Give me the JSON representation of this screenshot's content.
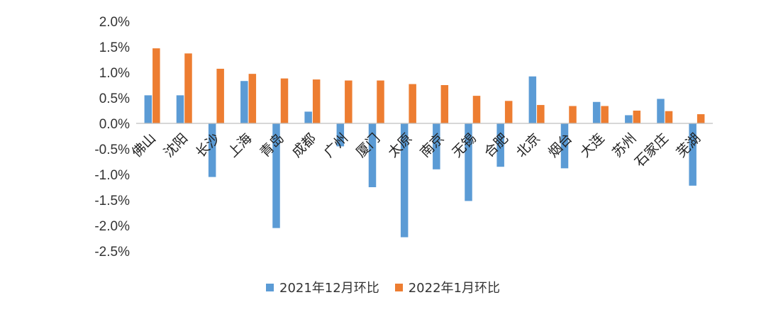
{
  "chart_data": {
    "type": "bar",
    "categories": [
      "佛山",
      "沈阳",
      "长沙",
      "上海",
      "青岛",
      "成都",
      "广州",
      "厦门",
      "太原",
      "南京",
      "无锡",
      "合肥",
      "北京",
      "烟台",
      "大连",
      "苏州",
      "石家庄",
      "芜湖"
    ],
    "series": [
      {
        "name": "2021年12月环比",
        "color": "#5B9BD5",
        "values": [
          0.55,
          0.55,
          -1.05,
          0.83,
          -2.05,
          0.23,
          -0.45,
          -1.25,
          -2.23,
          -0.9,
          -1.52,
          -0.85,
          0.92,
          -0.88,
          0.42,
          0.16,
          0.48,
          -1.22
        ]
      },
      {
        "name": "2022年1月环比",
        "color": "#ED7D31",
        "values": [
          1.47,
          1.37,
          1.07,
          0.97,
          0.88,
          0.86,
          0.84,
          0.84,
          0.77,
          0.75,
          0.54,
          0.44,
          0.36,
          0.34,
          0.34,
          0.25,
          0.24,
          0.18
        ]
      }
    ],
    "ylim": [
      -2.5,
      2.0
    ],
    "yticks": [
      "2.0%",
      "1.5%",
      "1.0%",
      "0.5%",
      "0.0%",
      "-0.5%",
      "-1.0%",
      "-1.5%",
      "-2.0%",
      "-2.5%"
    ],
    "ytick_values": [
      2.0,
      1.5,
      1.0,
      0.5,
      0.0,
      -0.5,
      -1.0,
      -1.5,
      -2.0,
      -2.5
    ],
    "unit": "%",
    "legend_position": "bottom",
    "grid": false
  }
}
